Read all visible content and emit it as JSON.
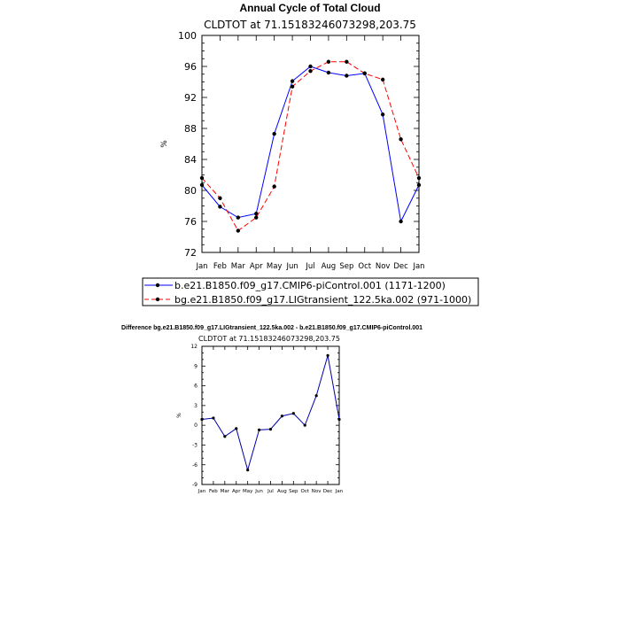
{
  "page": {
    "title": "Annual Cycle of Total Cloud",
    "subtitle": "CLDTOT at 71.15183246073298,203.75",
    "diff_title": "Difference bg.e21.B1850.f09_g17.LIGtransient_122.5ka.002 - b.e21.B1850.f09_g17.CMIP6-piControl.001",
    "diff_subtitle": "CLDTOT at 71.15183246073298,203.75"
  },
  "chart_data": [
    {
      "type": "line",
      "title": "Annual Cycle of Total Cloud",
      "subtitle": "CLDTOT at 71.15183246073298,203.75",
      "ylabel": "%",
      "xlabel": "",
      "categories": [
        "Jan",
        "Feb",
        "Mar",
        "Apr",
        "May",
        "Jun",
        "Jul",
        "Aug",
        "Sep",
        "Oct",
        "Nov",
        "Dec",
        "Jan"
      ],
      "ylim": [
        72,
        100
      ],
      "yticks": [
        72,
        76,
        80,
        84,
        88,
        92,
        96,
        100
      ],
      "series": [
        {
          "name": "b.e21.B1850.f09_g17.CMIP6-piControl.001 (1171-1200)",
          "color": "#0000ff",
          "dash": "solid",
          "values": [
            80.7,
            77.9,
            76.5,
            77.0,
            87.3,
            94.1,
            96.0,
            95.2,
            94.8,
            95.1,
            89.8,
            76.0,
            80.7
          ]
        },
        {
          "name": "bg.e21.B1850.f09_g17.LIGtransient_122.5ka.002 (971-1000)",
          "color": "#ff0000",
          "dash": "dashed",
          "values": [
            81.6,
            79.0,
            74.8,
            76.5,
            80.5,
            93.4,
            95.4,
            96.6,
            96.6,
            95.1,
            94.3,
            86.6,
            81.6
          ]
        }
      ],
      "legend": "bottom",
      "grid": false
    },
    {
      "type": "line",
      "title": "Difference bg.e21.B1850.f09_g17.LIGtransient_122.5ka.002 - b.e21.B1850.f09_g17.CMIP6-piControl.001",
      "subtitle": "CLDTOT at 71.15183246073298,203.75",
      "ylabel": "%",
      "xlabel": "",
      "categories": [
        "Jan",
        "Feb",
        "Mar",
        "Apr",
        "May",
        "Jun",
        "Jul",
        "Aug",
        "Sep",
        "Oct",
        "Nov",
        "Dec",
        "Jan"
      ],
      "ylim": [
        -9,
        12
      ],
      "yticks": [
        -9,
        -6,
        -3,
        0,
        3,
        6,
        9,
        12
      ],
      "series": [
        {
          "color": "#0000aa",
          "values": [
            0.9,
            1.1,
            -1.7,
            -0.5,
            -6.8,
            -0.7,
            -0.6,
            1.4,
            1.8,
            0.0,
            4.5,
            10.6,
            0.9
          ]
        }
      ],
      "grid": false
    }
  ]
}
